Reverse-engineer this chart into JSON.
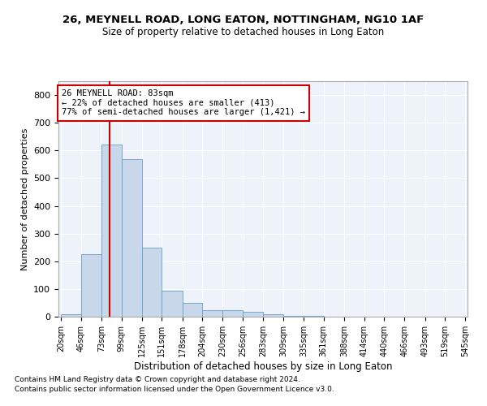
{
  "title": "26, MEYNELL ROAD, LONG EATON, NOTTINGHAM, NG10 1AF",
  "subtitle": "Size of property relative to detached houses in Long Eaton",
  "xlabel": "Distribution of detached houses by size in Long Eaton",
  "ylabel": "Number of detached properties",
  "property_size": 83,
  "property_label": "26 MEYNELL ROAD: 83sqm",
  "annotation_line1": "← 22% of detached houses are smaller (413)",
  "annotation_line2": "77% of semi-detached houses are larger (1,421) →",
  "bar_color": "#c8d8ea",
  "bar_edge_color": "#6a9ec0",
  "vline_color": "#cc0000",
  "annotation_box_color": "#ffffff",
  "annotation_box_edge": "#cc0000",
  "background_color": "#eef2fb",
  "grid_color": "#ffffff",
  "bin_edges": [
    20,
    46,
    73,
    99,
    125,
    151,
    178,
    204,
    230,
    256,
    283,
    309,
    335,
    361,
    388,
    414,
    440,
    466,
    493,
    519,
    545
  ],
  "bar_heights": [
    10,
    225,
    620,
    570,
    250,
    93,
    50,
    22,
    22,
    18,
    8,
    4,
    2,
    1,
    0,
    0,
    0,
    0,
    0,
    0
  ],
  "ylim": [
    0,
    850
  ],
  "yticks": [
    0,
    100,
    200,
    300,
    400,
    500,
    600,
    700,
    800
  ],
  "footnote1": "Contains HM Land Registry data © Crown copyright and database right 2024.",
  "footnote2": "Contains public sector information licensed under the Open Government Licence v3.0."
}
